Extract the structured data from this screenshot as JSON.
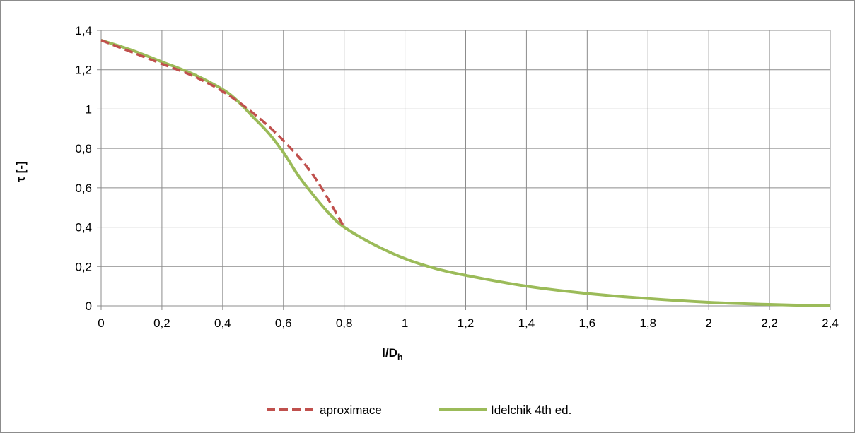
{
  "chart_data": {
    "type": "line",
    "title": "",
    "xlabel": {
      "main": "l/D",
      "subscript": "h"
    },
    "ylabel": "τ [-]",
    "xlim": [
      0,
      2.4
    ],
    "ylim": [
      0,
      1.4
    ],
    "x_ticks": [
      0,
      0.2,
      0.4,
      0.6,
      0.8,
      1,
      1.2,
      1.4,
      1.6,
      1.8,
      2,
      2.2,
      2.4
    ],
    "x_tick_labels": [
      "0",
      "0,2",
      "0,4",
      "0,6",
      "0,8",
      "1",
      "1,2",
      "1,4",
      "1,6",
      "1,8",
      "2",
      "2,2",
      "2,4"
    ],
    "y_ticks": [
      0,
      0.2,
      0.4,
      0.6,
      0.8,
      1,
      1.2,
      1.4
    ],
    "y_tick_labels": [
      "0",
      "0,2",
      "0,4",
      "0,6",
      "0,8",
      "1",
      "1,2",
      "1,4"
    ],
    "grid": true,
    "legend_position": "bottom",
    "series": [
      {
        "name": "aproximace",
        "color": "#c0504d",
        "style": "dashed",
        "x": [
          0,
          0.1,
          0.2,
          0.3,
          0.4,
          0.5,
          0.6,
          0.7,
          0.8
        ],
        "y": [
          1.35,
          1.29,
          1.23,
          1.17,
          1.09,
          0.98,
          0.84,
          0.66,
          0.4
        ]
      },
      {
        "name": "Idelchik 4th ed.",
        "color": "#9bbb59",
        "style": "solid",
        "x": [
          0,
          0.1,
          0.2,
          0.3,
          0.4,
          0.45,
          0.5,
          0.55,
          0.6,
          0.65,
          0.7,
          0.75,
          0.8,
          0.9,
          1.0,
          1.1,
          1.2,
          1.4,
          1.6,
          1.8,
          2.0,
          2.2,
          2.4
        ],
        "y": [
          1.35,
          1.3,
          1.24,
          1.18,
          1.1,
          1.04,
          0.96,
          0.88,
          0.78,
          0.66,
          0.56,
          0.47,
          0.4,
          0.31,
          0.24,
          0.19,
          0.155,
          0.1,
          0.063,
          0.037,
          0.018,
          0.007,
          0.0
        ]
      }
    ]
  }
}
